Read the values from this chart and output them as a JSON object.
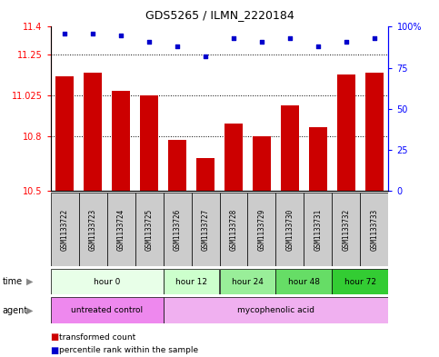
{
  "title": "GDS5265 / ILMN_2220184",
  "samples": [
    "GSM1133722",
    "GSM1133723",
    "GSM1133724",
    "GSM1133725",
    "GSM1133726",
    "GSM1133727",
    "GSM1133728",
    "GSM1133729",
    "GSM1133730",
    "GSM1133731",
    "GSM1133732",
    "GSM1133733"
  ],
  "bar_values": [
    11.13,
    11.15,
    11.05,
    11.025,
    10.78,
    10.68,
    10.87,
    10.8,
    10.97,
    10.85,
    11.14,
    11.15
  ],
  "percentile_values": [
    96,
    96,
    95,
    91,
    88,
    82,
    93,
    91,
    93,
    88,
    91,
    93
  ],
  "bar_color": "#cc0000",
  "percentile_color": "#0000cc",
  "ylim": [
    10.5,
    11.4
  ],
  "yticks": [
    10.5,
    10.8,
    11.025,
    11.25,
    11.4
  ],
  "ytick_labels": [
    "10.5",
    "10.8",
    "11.025",
    "11.25",
    "11.4"
  ],
  "right_yticks": [
    0,
    25,
    50,
    75,
    100
  ],
  "right_ytick_labels": [
    "0",
    "25",
    "50",
    "75",
    "100%"
  ],
  "gridlines": [
    10.8,
    11.025,
    11.25
  ],
  "time_groups": [
    {
      "label": "hour 0",
      "start": 0,
      "end": 4,
      "color": "#e8ffe8"
    },
    {
      "label": "hour 12",
      "start": 4,
      "end": 6,
      "color": "#ccffcc"
    },
    {
      "label": "hour 24",
      "start": 6,
      "end": 8,
      "color": "#99ee99"
    },
    {
      "label": "hour 48",
      "start": 8,
      "end": 10,
      "color": "#66dd66"
    },
    {
      "label": "hour 72",
      "start": 10,
      "end": 12,
      "color": "#33cc33"
    }
  ],
  "agent_groups": [
    {
      "label": "untreated control",
      "start": 0,
      "end": 4,
      "color": "#ee88ee"
    },
    {
      "label": "mycophenolic acid",
      "start": 4,
      "end": 12,
      "color": "#f0b0f0"
    }
  ],
  "label_bg_color": "#cccccc",
  "legend_items": [
    {
      "color": "#cc0000",
      "label": "transformed count"
    },
    {
      "color": "#0000cc",
      "label": "percentile rank within the sample"
    }
  ],
  "background_color": "#ffffff"
}
